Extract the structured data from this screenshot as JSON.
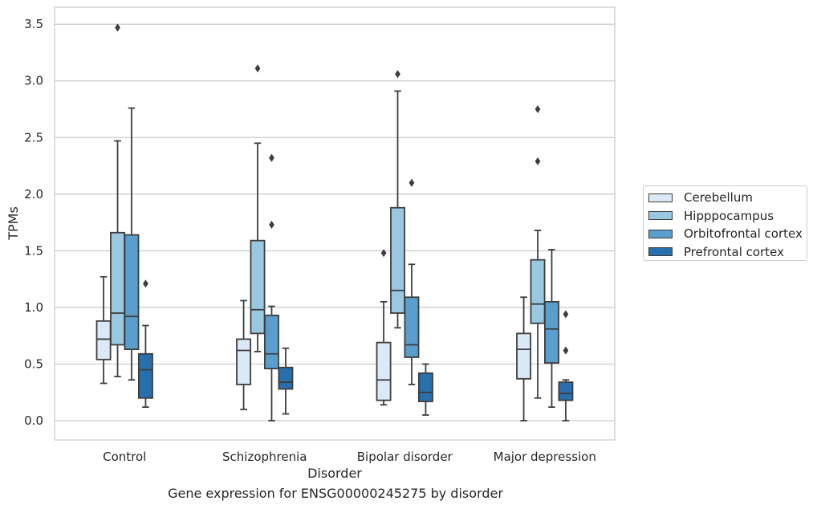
{
  "chart_data": {
    "type": "box",
    "title": "",
    "caption": "Gene expression for ENSG00000245275 by disorder",
    "xlabel": "Disorder",
    "ylabel": "TPMs",
    "ylim": [
      -0.17,
      3.65
    ],
    "yticks": [
      "0.0",
      "0.5",
      "1.0",
      "1.5",
      "2.0",
      "2.5",
      "3.0",
      "3.5"
    ],
    "grid": "horizontal",
    "legend_position": "right",
    "categories": [
      "Control",
      "Schizophrenia",
      "Bipolar disorder",
      "Major depression"
    ],
    "series": [
      {
        "name": "Cerebellum",
        "color": "#dbe9f6",
        "boxes": [
          {
            "whisker_low": 0.33,
            "q1": 0.54,
            "median": 0.72,
            "q3": 0.88,
            "whisker_high": 1.27,
            "outliers": []
          },
          {
            "whisker_low": 0.1,
            "q1": 0.32,
            "median": 0.62,
            "q3": 0.72,
            "whisker_high": 1.06,
            "outliers": []
          },
          {
            "whisker_low": 0.14,
            "q1": 0.18,
            "median": 0.36,
            "q3": 0.69,
            "whisker_high": 1.05,
            "outliers": [
              1.48
            ]
          },
          {
            "whisker_low": 0.0,
            "q1": 0.37,
            "median": 0.63,
            "q3": 0.77,
            "whisker_high": 1.09,
            "outliers": []
          }
        ]
      },
      {
        "name": "Hipppocampus",
        "color": "#9ac8e0",
        "boxes": [
          {
            "whisker_low": 0.39,
            "q1": 0.67,
            "median": 0.95,
            "q3": 1.66,
            "whisker_high": 2.47,
            "outliers": [
              3.47
            ]
          },
          {
            "whisker_low": 0.61,
            "q1": 0.77,
            "median": 0.98,
            "q3": 1.59,
            "whisker_high": 2.45,
            "outliers": [
              3.11
            ]
          },
          {
            "whisker_low": 0.82,
            "q1": 0.95,
            "median": 1.15,
            "q3": 1.88,
            "whisker_high": 2.91,
            "outliers": [
              3.06
            ]
          },
          {
            "whisker_low": 0.2,
            "q1": 0.86,
            "median": 1.03,
            "q3": 1.42,
            "whisker_high": 1.68,
            "outliers": [
              2.29,
              2.75
            ]
          }
        ]
      },
      {
        "name": "Orbitofrontal cortex",
        "color": "#5a9ecd",
        "boxes": [
          {
            "whisker_low": 0.36,
            "q1": 0.63,
            "median": 0.92,
            "q3": 1.64,
            "whisker_high": 2.76,
            "outliers": []
          },
          {
            "whisker_low": 0.0,
            "q1": 0.46,
            "median": 0.59,
            "q3": 0.93,
            "whisker_high": 1.01,
            "outliers": [
              1.73,
              2.32
            ]
          },
          {
            "whisker_low": 0.32,
            "q1": 0.56,
            "median": 0.67,
            "q3": 1.09,
            "whisker_high": 1.38,
            "outliers": [
              2.1
            ]
          },
          {
            "whisker_low": 0.12,
            "q1": 0.51,
            "median": 0.81,
            "q3": 1.05,
            "whisker_high": 1.51,
            "outliers": []
          }
        ]
      },
      {
        "name": "Prefrontal cortex",
        "color": "#2a6fad",
        "boxes": [
          {
            "whisker_low": 0.12,
            "q1": 0.2,
            "median": 0.45,
            "q3": 0.59,
            "whisker_high": 0.84,
            "outliers": [
              1.21
            ]
          },
          {
            "whisker_low": 0.06,
            "q1": 0.28,
            "median": 0.34,
            "q3": 0.47,
            "whisker_high": 0.64,
            "outliers": []
          },
          {
            "whisker_low": 0.05,
            "q1": 0.17,
            "median": 0.25,
            "q3": 0.42,
            "whisker_high": 0.5,
            "outliers": []
          },
          {
            "whisker_low": 0.0,
            "q1": 0.18,
            "median": 0.24,
            "q3": 0.34,
            "whisker_high": 0.36,
            "outliers": [
              0.62,
              0.94
            ]
          }
        ]
      }
    ]
  }
}
